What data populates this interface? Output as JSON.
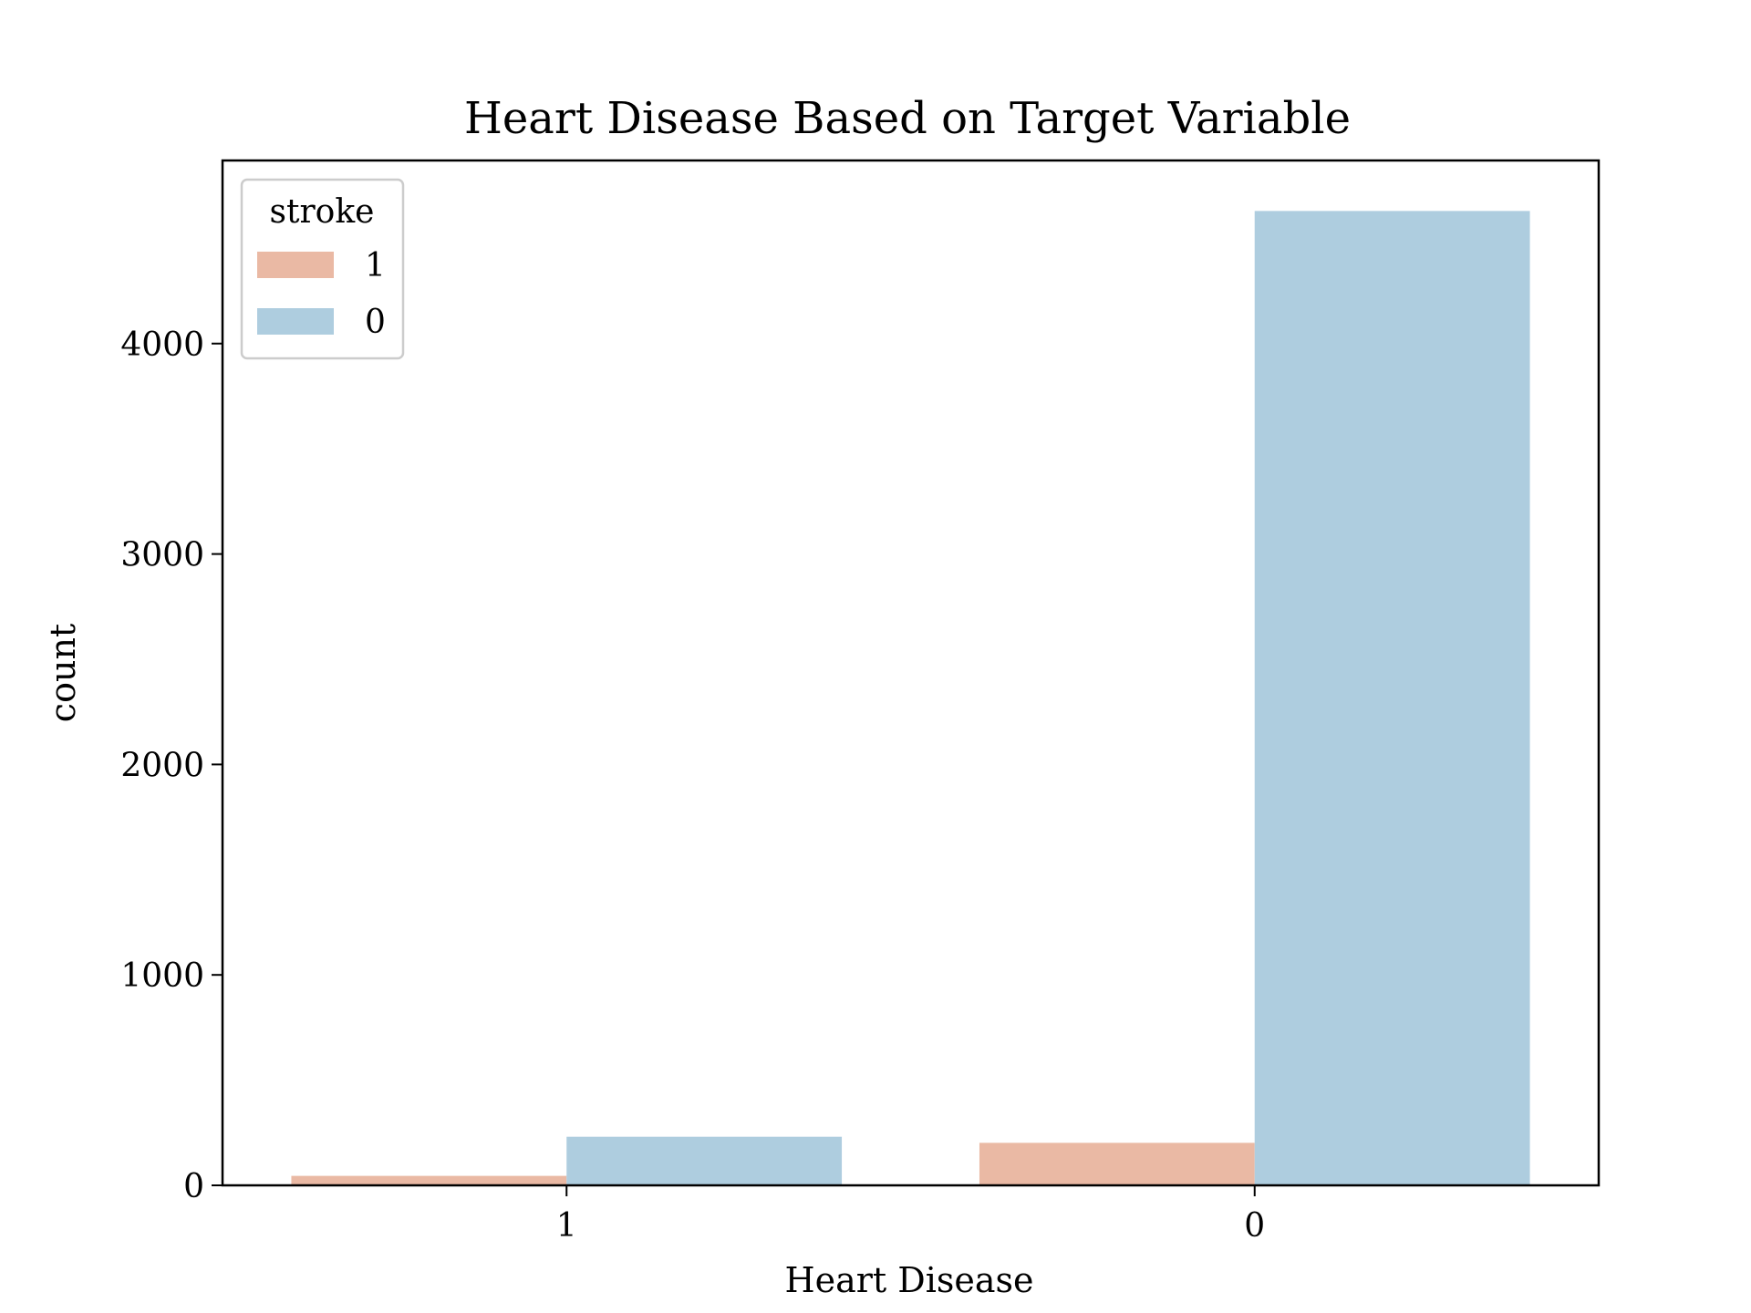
{
  "chart_data": {
    "type": "bar",
    "title": "Heart Disease Based on Target Variable",
    "xlabel": "Heart Disease",
    "ylabel": "count",
    "categories": [
      "1",
      "0"
    ],
    "series": [
      {
        "name": "1",
        "values": [
          45,
          202
        ],
        "color": "#eab9a4"
      },
      {
        "name": "0",
        "values": [
          231,
          4630
        ],
        "color": "#aecddf"
      }
    ],
    "ylim": [
      0,
      4870
    ],
    "yticks": [
      0,
      1000,
      2000,
      3000,
      4000
    ],
    "legend": {
      "title": "stroke",
      "position": "top-left"
    },
    "grid": false
  }
}
